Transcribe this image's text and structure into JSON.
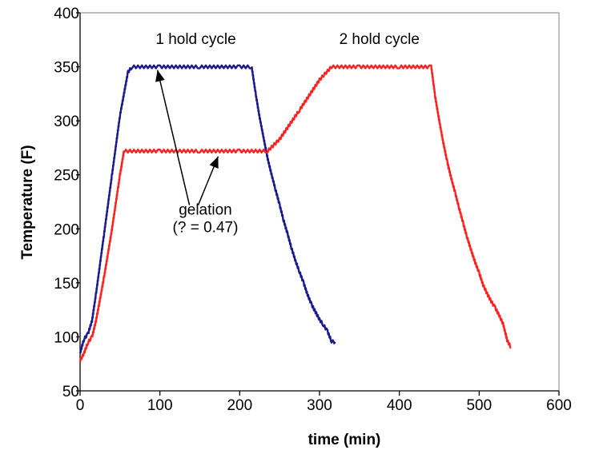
{
  "chart_data": {
    "type": "line",
    "title": "",
    "xlabel": "time (min)",
    "ylabel": "Temperature (F)",
    "xlim": [
      0,
      600
    ],
    "ylim": [
      50,
      400
    ],
    "xticks": [
      0,
      100,
      200,
      300,
      400,
      500,
      600
    ],
    "yticks": [
      50,
      100,
      150,
      200,
      250,
      300,
      350,
      400
    ],
    "grid": false,
    "legend": "none",
    "series": [
      {
        "color": "#1a1a8c",
        "x": [
          0,
          5,
          10,
          15,
          20,
          30,
          40,
          50,
          60,
          65,
          100,
          150,
          200,
          215,
          220,
          225,
          230,
          235,
          240,
          245,
          250,
          255,
          260,
          265,
          270,
          275,
          280,
          285,
          290,
          295,
          300,
          305,
          310,
          315,
          320
        ],
        "y": [
          85,
          98,
          103,
          115,
          140,
          195,
          250,
          305,
          345,
          350,
          350,
          350,
          350,
          350,
          325,
          303,
          284,
          265,
          250,
          236,
          222,
          208,
          195,
          182,
          170,
          160,
          150,
          139,
          130,
          123,
          116,
          111,
          105,
          96,
          95
        ]
      },
      {
        "color": "#ff2020",
        "x": [
          0,
          5,
          10,
          15,
          20,
          30,
          40,
          50,
          55,
          100,
          150,
          200,
          235,
          250,
          275,
          300,
          315,
          350,
          400,
          440,
          445,
          450,
          455,
          460,
          465,
          470,
          475,
          480,
          485,
          490,
          495,
          500,
          505,
          510,
          515,
          520,
          525,
          530,
          535,
          540
        ],
        "y": [
          78,
          85,
          95,
          100,
          115,
          155,
          200,
          250,
          272,
          272,
          272,
          272,
          272,
          283,
          310,
          338,
          350,
          350,
          350,
          350,
          322,
          300,
          280,
          262,
          247,
          233,
          219,
          205,
          192,
          180,
          169,
          159,
          148,
          140,
          133,
          127,
          120,
          112,
          97,
          90
        ]
      }
    ],
    "annotations": [
      {
        "text": "1 hold cycle",
        "x": 145,
        "y": 371
      },
      {
        "text": "2 hold cycle",
        "x": 375,
        "y": 371
      },
      {
        "text": "gelation",
        "x": 157,
        "y": 213
      },
      {
        "text": "(? = 0.47)",
        "x": 157,
        "y": 197
      }
    ],
    "arrows": [
      {
        "from": [
          137,
          222
        ],
        "to": [
          97,
          347
        ]
      },
      {
        "from": [
          148,
          222
        ],
        "to": [
          173,
          267
        ]
      }
    ]
  }
}
